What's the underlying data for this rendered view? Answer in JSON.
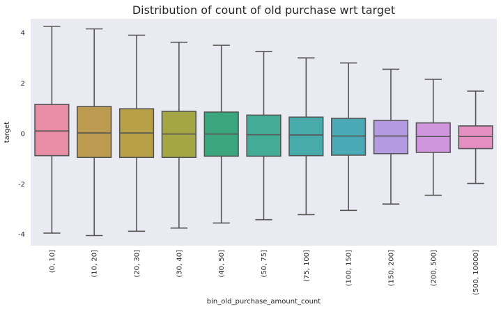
{
  "chart_data": {
    "type": "box",
    "title": "Distribution of count of old purchase wrt target",
    "xlabel": "bin_old_purchase_amount_count",
    "ylabel": "target",
    "ylim": [
      -4.45,
      4.55
    ],
    "yticks": [
      -4,
      -2,
      0,
      2,
      4
    ],
    "grid": false,
    "categories": [
      "(0, 10]",
      "(10, 20]",
      "(20, 30]",
      "(30, 40]",
      "(40, 50]",
      "(50, 75]",
      "(75, 100]",
      "(100, 150]",
      "(150, 200]",
      "(200, 500]",
      "(500, 10000]"
    ],
    "boxes": [
      {
        "whisker_high": 4.25,
        "q3": 1.15,
        "median": 0.1,
        "q1": -0.88,
        "whisker_low": -3.95,
        "color": "#e98da5"
      },
      {
        "whisker_high": 4.15,
        "q3": 1.07,
        "median": 0.02,
        "q1": -0.95,
        "whisker_low": -4.05,
        "color": "#bc9a4f"
      },
      {
        "whisker_high": 3.9,
        "q3": 0.98,
        "median": 0.02,
        "q1": -0.95,
        "whisker_low": -3.88,
        "color": "#b8a048"
      },
      {
        "whisker_high": 3.62,
        "q3": 0.88,
        "median": -0.02,
        "q1": -0.95,
        "whisker_low": -3.75,
        "color": "#a4a646"
      },
      {
        "whisker_high": 3.5,
        "q3": 0.85,
        "median": -0.02,
        "q1": -0.9,
        "whisker_low": -3.55,
        "color": "#3ba57f"
      },
      {
        "whisker_high": 3.25,
        "q3": 0.73,
        "median": -0.05,
        "q1": -0.9,
        "whisker_low": -3.42,
        "color": "#43ac96"
      },
      {
        "whisker_high": 3.0,
        "q3": 0.65,
        "median": -0.06,
        "q1": -0.88,
        "whisker_low": -3.22,
        "color": "#46abaa"
      },
      {
        "whisker_high": 2.8,
        "q3": 0.6,
        "median": -0.1,
        "q1": -0.86,
        "whisker_low": -3.05,
        "color": "#4aa9b4"
      },
      {
        "whisker_high": 2.55,
        "q3": 0.52,
        "median": -0.1,
        "q1": -0.8,
        "whisker_low": -2.8,
        "color": "#b49ae0"
      },
      {
        "whisker_high": 2.15,
        "q3": 0.42,
        "median": -0.12,
        "q1": -0.75,
        "whisker_low": -2.45,
        "color": "#cf96dd"
      },
      {
        "whisker_high": 1.68,
        "q3": 0.3,
        "median": -0.12,
        "q1": -0.6,
        "whisker_low": -1.98,
        "color": "#e48ec2"
      }
    ],
    "colors": {
      "background": "#eaeaf2",
      "box_edge": "#555555"
    }
  }
}
